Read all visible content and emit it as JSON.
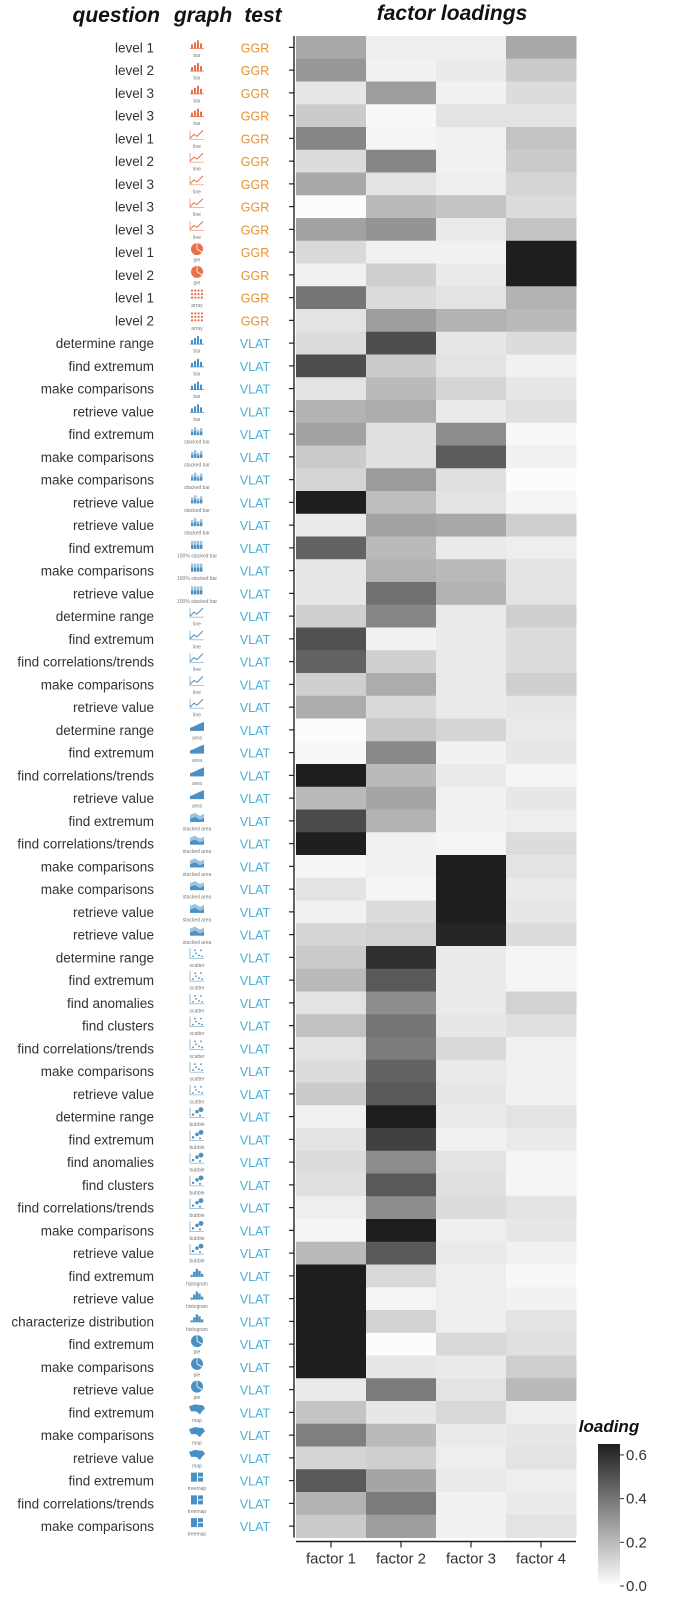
{
  "headers": {
    "question": "question",
    "graph": "graph",
    "test": "test",
    "factor_loadings": "factor loadings"
  },
  "colors": {
    "GGR": "#E8912D",
    "VLAT": "#4BAFD6",
    "ggr_icon": "#E8704A",
    "vlat_icon": "#4A90C2"
  },
  "chart_data": {
    "type": "heatmap",
    "title": "factor loadings",
    "x": [
      "factor 1",
      "factor 2",
      "factor 3",
      "factor 4"
    ],
    "colorbar": {
      "title": "loading",
      "ticks": [
        0.0,
        0.2,
        0.4,
        0.6
      ],
      "range": [
        0,
        0.65
      ],
      "colormap": "grays"
    },
    "rows": [
      {
        "question": "level 1",
        "graph": "bar",
        "test": "GGR",
        "values": [
          0.25,
          0.05,
          0.05,
          0.25
        ]
      },
      {
        "question": "level 2",
        "graph": "bar",
        "test": "GGR",
        "values": [
          0.3,
          0.04,
          0.06,
          0.15
        ]
      },
      {
        "question": "level 3",
        "graph": "bar",
        "test": "GGR",
        "values": [
          0.07,
          0.28,
          0.04,
          0.1
        ]
      },
      {
        "question": "level 3",
        "graph": "bar",
        "test": "GGR",
        "values": [
          0.15,
          0.02,
          0.08,
          0.08
        ]
      },
      {
        "question": "level 1",
        "graph": "line",
        "test": "GGR",
        "values": [
          0.35,
          0.03,
          0.04,
          0.17
        ]
      },
      {
        "question": "level 2",
        "graph": "line",
        "test": "GGR",
        "values": [
          0.1,
          0.35,
          0.04,
          0.15
        ]
      },
      {
        "question": "level 3",
        "graph": "line",
        "test": "GGR",
        "values": [
          0.25,
          0.08,
          0.05,
          0.12
        ]
      },
      {
        "question": "level 3",
        "graph": "line",
        "test": "GGR",
        "values": [
          0.01,
          0.2,
          0.17,
          0.1
        ]
      },
      {
        "question": "level 3",
        "graph": "line",
        "test": "GGR",
        "values": [
          0.27,
          0.31,
          0.06,
          0.17
        ]
      },
      {
        "question": "level 1",
        "graph": "pie",
        "test": "GGR",
        "values": [
          0.11,
          0.04,
          0.04,
          0.79
        ]
      },
      {
        "question": "level 2",
        "graph": "pie",
        "test": "GGR",
        "values": [
          0.04,
          0.14,
          0.06,
          0.74
        ]
      },
      {
        "question": "level 1",
        "graph": "array",
        "test": "GGR",
        "values": [
          0.4,
          0.1,
          0.08,
          0.22
        ]
      },
      {
        "question": "level 2",
        "graph": "array",
        "test": "GGR",
        "values": [
          0.08,
          0.28,
          0.22,
          0.2
        ]
      },
      {
        "question": "determine range",
        "graph": "bar",
        "test": "VLAT",
        "values": [
          0.1,
          0.51,
          0.07,
          0.1
        ]
      },
      {
        "question": "find extremum",
        "graph": "bar",
        "test": "VLAT",
        "values": [
          0.51,
          0.15,
          0.08,
          0.04
        ]
      },
      {
        "question": "make comparisons",
        "graph": "bar",
        "test": "VLAT",
        "values": [
          0.08,
          0.2,
          0.12,
          0.07
        ]
      },
      {
        "question": "retrieve value",
        "graph": "bar",
        "test": "VLAT",
        "values": [
          0.22,
          0.24,
          0.06,
          0.09
        ]
      },
      {
        "question": "find extremum",
        "graph": "stacked bar",
        "test": "VLAT",
        "values": [
          0.27,
          0.09,
          0.33,
          0.02
        ]
      },
      {
        "question": "make comparisons",
        "graph": "stacked bar",
        "test": "VLAT",
        "values": [
          0.15,
          0.09,
          0.47,
          0.04
        ]
      },
      {
        "question": "make comparisons",
        "graph": "stacked bar",
        "test": "VLAT",
        "values": [
          0.12,
          0.29,
          0.09,
          0.01
        ]
      },
      {
        "question": "retrieve value",
        "graph": "stacked bar",
        "test": "VLAT",
        "values": [
          0.73,
          0.19,
          0.08,
          0.03
        ]
      },
      {
        "question": "retrieve value",
        "graph": "stacked bar",
        "test": "VLAT",
        "values": [
          0.06,
          0.27,
          0.25,
          0.14
        ]
      },
      {
        "question": "find extremum",
        "graph": "100% stacked bar",
        "test": "VLAT",
        "values": [
          0.45,
          0.2,
          0.06,
          0.05
        ]
      },
      {
        "question": "make comparisons",
        "graph": "100% stacked bar",
        "test": "VLAT",
        "values": [
          0.07,
          0.22,
          0.2,
          0.08
        ]
      },
      {
        "question": "retrieve value",
        "graph": "100% stacked bar",
        "test": "VLAT",
        "values": [
          0.07,
          0.41,
          0.22,
          0.08
        ]
      },
      {
        "question": "determine range",
        "graph": "line",
        "test": "VLAT",
        "values": [
          0.14,
          0.35,
          0.06,
          0.14
        ]
      },
      {
        "question": "find extremum",
        "graph": "line",
        "test": "VLAT",
        "values": [
          0.5,
          0.04,
          0.06,
          0.1
        ]
      },
      {
        "question": "find correlations/trends",
        "graph": "line",
        "test": "VLAT",
        "values": [
          0.45,
          0.14,
          0.06,
          0.1
        ]
      },
      {
        "question": "make comparisons",
        "graph": "line",
        "test": "VLAT",
        "values": [
          0.14,
          0.24,
          0.06,
          0.14
        ]
      },
      {
        "question": "retrieve value",
        "graph": "line",
        "test": "VLAT",
        "values": [
          0.24,
          0.11,
          0.06,
          0.07
        ]
      },
      {
        "question": "determine range",
        "graph": "area",
        "test": "VLAT",
        "values": [
          0.01,
          0.16,
          0.12,
          0.06
        ]
      },
      {
        "question": "find extremum",
        "graph": "area",
        "test": "VLAT",
        "values": [
          0.02,
          0.34,
          0.04,
          0.07
        ]
      },
      {
        "question": "find correlations/trends",
        "graph": "area",
        "test": "VLAT",
        "values": [
          0.68,
          0.2,
          0.06,
          0.03
        ]
      },
      {
        "question": "retrieve value",
        "graph": "area",
        "test": "VLAT",
        "values": [
          0.2,
          0.26,
          0.04,
          0.07
        ]
      },
      {
        "question": "find extremum",
        "graph": "stacked area",
        "test": "VLAT",
        "values": [
          0.52,
          0.22,
          0.04,
          0.05
        ]
      },
      {
        "question": "find correlations/trends",
        "graph": "stacked area",
        "test": "VLAT",
        "values": [
          0.9,
          0.04,
          0.03,
          0.1
        ]
      },
      {
        "question": "make comparisons",
        "graph": "stacked area",
        "test": "VLAT",
        "values": [
          0.03,
          0.04,
          0.74,
          0.08
        ]
      },
      {
        "question": "make comparisons",
        "graph": "stacked area",
        "test": "VLAT",
        "values": [
          0.08,
          0.03,
          0.85,
          0.06
        ]
      },
      {
        "question": "retrieve value",
        "graph": "stacked area",
        "test": "VLAT",
        "values": [
          0.04,
          0.1,
          0.83,
          0.07
        ]
      },
      {
        "question": "retrieve value",
        "graph": "stacked area",
        "test": "VLAT",
        "values": [
          0.12,
          0.13,
          0.63,
          0.1
        ]
      },
      {
        "question": "determine range",
        "graph": "scatter",
        "test": "VLAT",
        "values": [
          0.15,
          0.6,
          0.06,
          0.03
        ]
      },
      {
        "question": "find extremum",
        "graph": "scatter",
        "test": "VLAT",
        "values": [
          0.2,
          0.48,
          0.06,
          0.03
        ]
      },
      {
        "question": "find anomalies",
        "graph": "scatter",
        "test": "VLAT",
        "values": [
          0.08,
          0.33,
          0.06,
          0.13
        ]
      },
      {
        "question": "find clusters",
        "graph": "scatter",
        "test": "VLAT",
        "values": [
          0.18,
          0.4,
          0.07,
          0.09
        ]
      },
      {
        "question": "find correlations/trends",
        "graph": "scatter",
        "test": "VLAT",
        "values": [
          0.08,
          0.38,
          0.11,
          0.04
        ]
      },
      {
        "question": "make comparisons",
        "graph": "scatter",
        "test": "VLAT",
        "values": [
          0.1,
          0.45,
          0.06,
          0.04
        ]
      },
      {
        "question": "retrieve value",
        "graph": "scatter",
        "test": "VLAT",
        "values": [
          0.15,
          0.48,
          0.07,
          0.04
        ]
      },
      {
        "question": "determine range",
        "graph": "bubble",
        "test": "VLAT",
        "values": [
          0.04,
          0.68,
          0.06,
          0.08
        ]
      },
      {
        "question": "find extremum",
        "graph": "bubble",
        "test": "VLAT",
        "values": [
          0.08,
          0.55,
          0.04,
          0.06
        ]
      },
      {
        "question": "find anomalies",
        "graph": "bubble",
        "test": "VLAT",
        "values": [
          0.1,
          0.33,
          0.08,
          0.03
        ]
      },
      {
        "question": "find clusters",
        "graph": "bubble",
        "test": "VLAT",
        "values": [
          0.09,
          0.48,
          0.09,
          0.03
        ]
      },
      {
        "question": "find correlations/trends",
        "graph": "bubble",
        "test": "VLAT",
        "values": [
          0.05,
          0.33,
          0.1,
          0.08
        ]
      },
      {
        "question": "make comparisons",
        "graph": "bubble",
        "test": "VLAT",
        "values": [
          0.03,
          0.65,
          0.05,
          0.07
        ]
      },
      {
        "question": "retrieve value",
        "graph": "bubble",
        "test": "VLAT",
        "values": [
          0.2,
          0.48,
          0.06,
          0.04
        ]
      },
      {
        "question": "find extremum",
        "graph": "histogram",
        "test": "VLAT",
        "values": [
          0.78,
          0.11,
          0.05,
          0.02
        ]
      },
      {
        "question": "retrieve value",
        "graph": "histogram",
        "test": "VLAT",
        "values": [
          0.88,
          0.03,
          0.05,
          0.04
        ]
      },
      {
        "question": "characterize distribution",
        "graph": "histogram",
        "test": "VLAT",
        "values": [
          0.68,
          0.13,
          0.05,
          0.08
        ]
      },
      {
        "question": "find extremum",
        "graph": "pie",
        "test": "VLAT",
        "values": [
          0.72,
          0.01,
          0.11,
          0.09
        ]
      },
      {
        "question": "make comparisons",
        "graph": "pie",
        "test": "VLAT",
        "values": [
          0.66,
          0.07,
          0.06,
          0.14
        ]
      },
      {
        "question": "retrieve value",
        "graph": "pie",
        "test": "VLAT",
        "values": [
          0.06,
          0.38,
          0.08,
          0.2
        ]
      },
      {
        "question": "find extremum",
        "graph": "map",
        "test": "VLAT",
        "values": [
          0.17,
          0.07,
          0.11,
          0.05
        ]
      },
      {
        "question": "make comparisons",
        "graph": "map",
        "test": "VLAT",
        "values": [
          0.37,
          0.2,
          0.06,
          0.07
        ]
      },
      {
        "question": "retrieve value",
        "graph": "map",
        "test": "VLAT",
        "values": [
          0.12,
          0.14,
          0.05,
          0.08
        ]
      },
      {
        "question": "find extremum",
        "graph": "treemap",
        "test": "VLAT",
        "values": [
          0.48,
          0.26,
          0.06,
          0.05
        ]
      },
      {
        "question": "find correlations/trends",
        "graph": "treemap",
        "test": "VLAT",
        "values": [
          0.22,
          0.38,
          0.04,
          0.06
        ]
      },
      {
        "question": "make comparisons",
        "graph": "treemap",
        "test": "VLAT",
        "values": [
          0.15,
          0.28,
          0.04,
          0.08
        ]
      }
    ]
  }
}
